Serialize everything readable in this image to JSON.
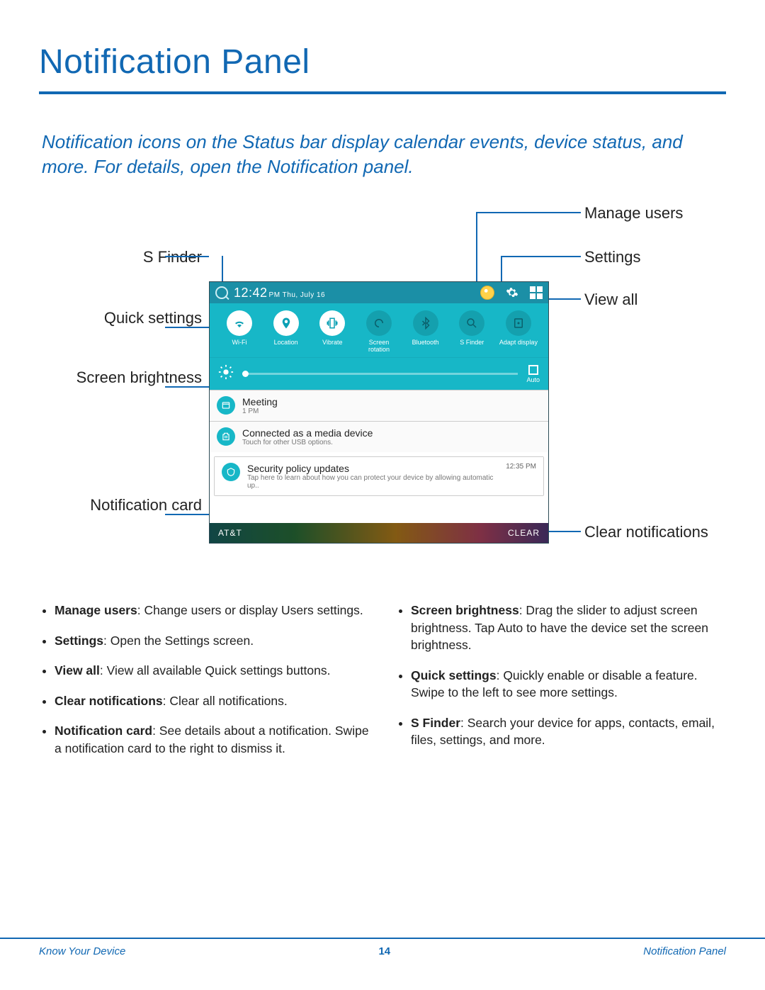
{
  "title": "Notification Panel",
  "intro": "Notification icons on the Status bar display calendar events, device status, and more. For details, open the Notification panel.",
  "callouts": {
    "manage_users": "Manage users",
    "settings": "Settings",
    "view_all": "View all",
    "clear": "Clear notifications",
    "sfinder": "S Finder",
    "quick": "Quick settings",
    "brightness": "Screen brightness",
    "card": "Notification card"
  },
  "screenshot": {
    "time": "12:42",
    "time_suffix": "PM Thu, July 16",
    "qs": [
      {
        "label": "Wi-Fi",
        "active": true
      },
      {
        "label": "Location",
        "active": true
      },
      {
        "label": "Vibrate",
        "active": true
      },
      {
        "label": "Screen rotation",
        "active": false
      },
      {
        "label": "Bluetooth",
        "active": false
      },
      {
        "label": "S Finder",
        "active": false
      },
      {
        "label": "Adapt display",
        "active": false
      }
    ],
    "auto_label": "Auto",
    "notifs": [
      {
        "title": "Meeting",
        "sub": "1 PM",
        "ts": ""
      },
      {
        "title": "Connected as a media device",
        "sub": "Touch for other USB options.",
        "ts": ""
      },
      {
        "title": "Security policy updates",
        "sub": "Tap here to learn about how you can protect your device by allowing automatic up..",
        "ts": "12:35 PM"
      }
    ],
    "carrier": "AT&T",
    "clear": "CLEAR"
  },
  "bullets_left": [
    {
      "b": "Manage users",
      "t": ": Change users or display Users settings."
    },
    {
      "b": "Settings",
      "t": ": Open the Settings screen."
    },
    {
      "b": "View all",
      "t": ": View all available Quick settings buttons."
    },
    {
      "b": "Clear notifications",
      "t": ": Clear all notifications."
    },
    {
      "b": "Notification card",
      "t": ": See details about a notification. Swipe a notification card to the right to dismiss it."
    }
  ],
  "bullets_right": [
    {
      "b": "Screen brightness",
      "t": ": Drag the slider to adjust screen brightness. Tap Auto to have the device set the screen brightness."
    },
    {
      "b": "Quick settings",
      "t": ": Quickly enable or disable a feature. Swipe to the left to see more settings."
    },
    {
      "b": "S Finder",
      "t": ": Search your device for apps, contacts, email, files, settings, and more."
    }
  ],
  "footer": {
    "left": "Know Your Device",
    "page": "14",
    "right": "Notification Panel"
  },
  "colors": {
    "brand": "#1168b3",
    "teal": "#17b7c7"
  }
}
